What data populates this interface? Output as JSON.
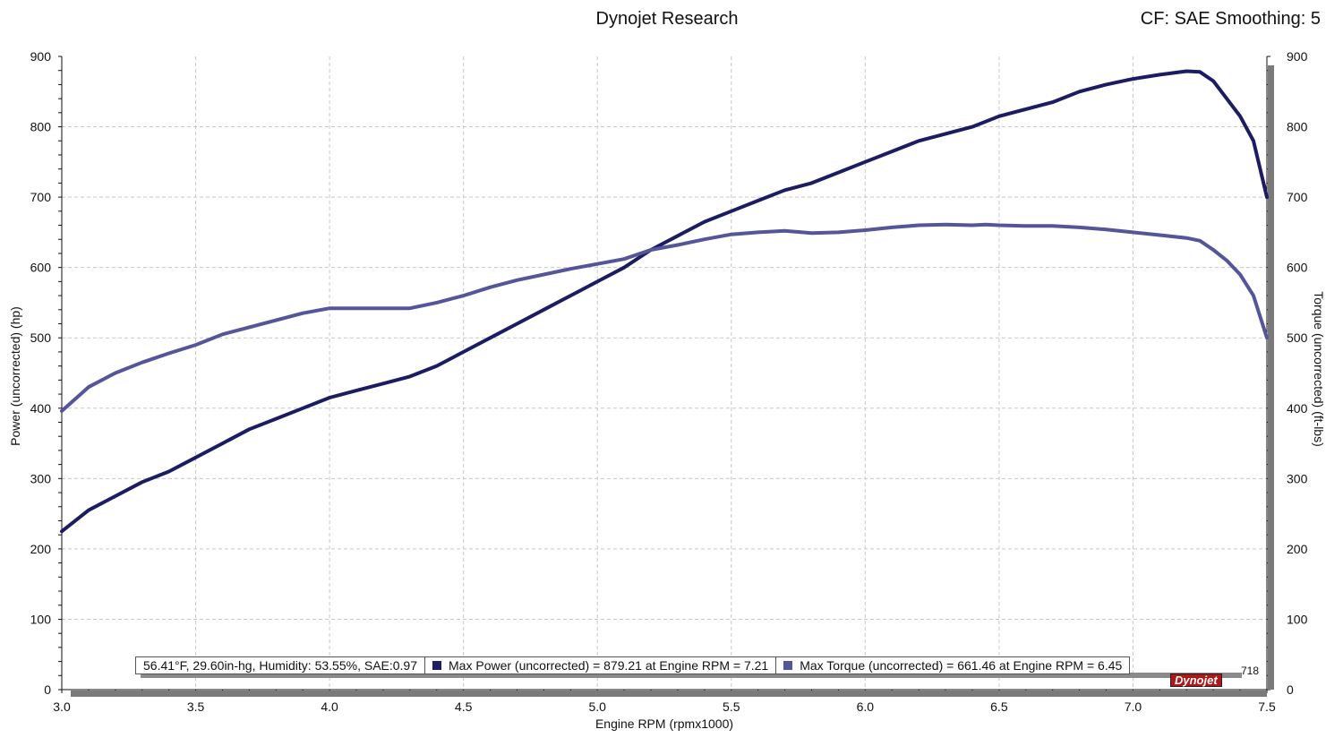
{
  "header": {
    "title": "Dynojet Research",
    "cf": "CF: SAE Smoothing: 5"
  },
  "legend": {
    "conditions": "56.41°F, 29.60in-hg, Humidity: 53.55%, SAE:0.97",
    "power": "Max Power (uncorrected) = 879.21 at Engine RPM = 7.21",
    "torque": "Max Torque (uncorrected) = 661.46 at Engine RPM = 6.45"
  },
  "run_label": "718",
  "logo_text": "Dynojet",
  "colors": {
    "power": "#1c1c62",
    "torque": "#55559a"
  },
  "chart_data": {
    "type": "line",
    "xlabel": "Engine RPM (rpmx1000)",
    "ylabel_left": "Power (uncorrected) (hp)",
    "ylabel_right": "Torque (uncorrected) (ft-lbs)",
    "xlim": [
      3.0,
      7.5
    ],
    "ylim": [
      0,
      900
    ],
    "x_ticks": [
      "3.0",
      "3.5",
      "4.0",
      "4.5",
      "5.0",
      "5.5",
      "6.0",
      "6.5",
      "7.0",
      "7.5"
    ],
    "y_ticks": [
      "0",
      "100",
      "200",
      "300",
      "400",
      "500",
      "600",
      "700",
      "800",
      "900"
    ],
    "grid": true,
    "series": [
      {
        "name": "Max Power (uncorrected)",
        "axis": "left",
        "x": [
          3.0,
          3.1,
          3.2,
          3.3,
          3.4,
          3.5,
          3.6,
          3.7,
          3.8,
          3.9,
          4.0,
          4.1,
          4.2,
          4.3,
          4.4,
          4.5,
          4.6,
          4.7,
          4.8,
          4.9,
          5.0,
          5.1,
          5.2,
          5.3,
          5.4,
          5.5,
          5.6,
          5.7,
          5.8,
          5.9,
          6.0,
          6.1,
          6.2,
          6.3,
          6.4,
          6.5,
          6.6,
          6.7,
          6.8,
          6.9,
          7.0,
          7.1,
          7.2,
          7.25,
          7.3,
          7.35,
          7.4,
          7.45,
          7.5
        ],
        "values": [
          225,
          255,
          275,
          295,
          310,
          330,
          350,
          370,
          385,
          400,
          415,
          425,
          435,
          445,
          460,
          480,
          500,
          520,
          540,
          560,
          580,
          600,
          625,
          645,
          665,
          680,
          695,
          710,
          720,
          735,
          750,
          765,
          780,
          790,
          800,
          815,
          825,
          835,
          850,
          860,
          868,
          874,
          879,
          878,
          865,
          840,
          815,
          780,
          700
        ]
      },
      {
        "name": "Max Torque (uncorrected)",
        "axis": "right",
        "x": [
          3.0,
          3.1,
          3.2,
          3.3,
          3.4,
          3.5,
          3.6,
          3.7,
          3.8,
          3.9,
          4.0,
          4.1,
          4.2,
          4.3,
          4.4,
          4.5,
          4.6,
          4.7,
          4.8,
          4.9,
          5.0,
          5.1,
          5.2,
          5.3,
          5.4,
          5.5,
          5.6,
          5.7,
          5.8,
          5.9,
          6.0,
          6.1,
          6.2,
          6.3,
          6.4,
          6.45,
          6.5,
          6.6,
          6.7,
          6.8,
          6.9,
          7.0,
          7.1,
          7.2,
          7.25,
          7.3,
          7.35,
          7.4,
          7.45,
          7.5
        ],
        "values": [
          396,
          430,
          450,
          465,
          478,
          490,
          505,
          515,
          525,
          535,
          542,
          542,
          542,
          542,
          550,
          560,
          572,
          582,
          590,
          598,
          605,
          612,
          625,
          632,
          640,
          647,
          650,
          652,
          649,
          650,
          653,
          657,
          660,
          661,
          660,
          661,
          660,
          659,
          659,
          657,
          654,
          650,
          646,
          642,
          638,
          625,
          610,
          590,
          560,
          500
        ]
      }
    ]
  }
}
